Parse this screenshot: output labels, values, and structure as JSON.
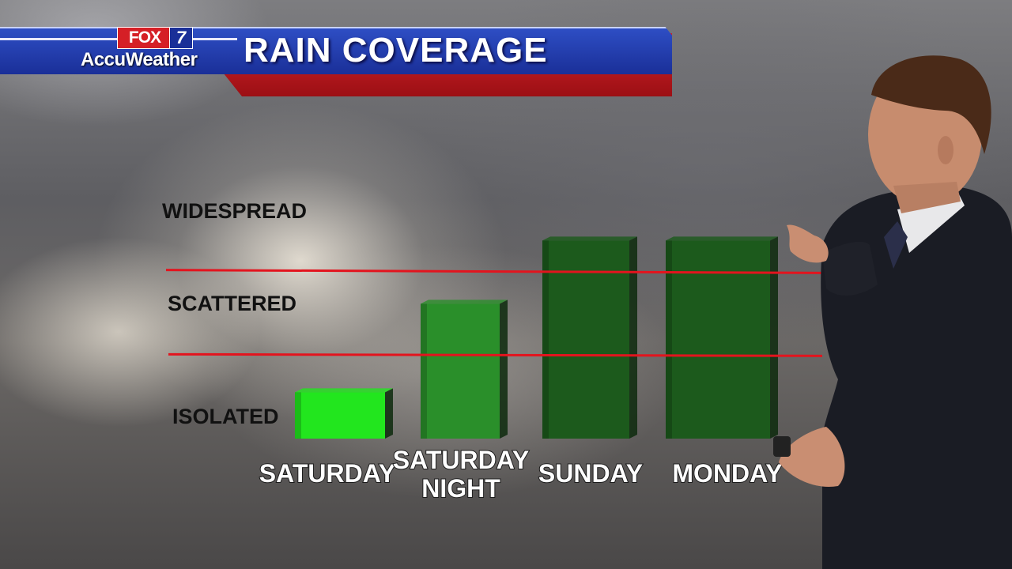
{
  "header": {
    "logo_fox": "FOX",
    "logo_seven": "7",
    "logo_accuweather": "AccuWeather",
    "title": "RAIN COVERAGE"
  },
  "colors": {
    "banner_blue": "#1a2f98",
    "banner_red": "#c81e25",
    "threshold_line": "#e3141e",
    "bar_bright_green": "#22e61e",
    "bar_mid_green": "#2a8f2a",
    "bar_dark_green": "#1c5a1c"
  },
  "chart_data": {
    "type": "bar",
    "title": "RAIN COVERAGE",
    "xlabel": "",
    "ylabel": "",
    "y_axis": "ordinal coverage levels",
    "levels": [
      "ISOLATED",
      "SCATTERED",
      "WIDESPREAD"
    ],
    "categories": [
      "SATURDAY",
      "SATURDAY NIGHT",
      "SUNDAY",
      "MONDAY"
    ],
    "values": [
      0.55,
      1.6,
      2.35,
      2.35
    ],
    "ylim": [
      0,
      3
    ],
    "threshold_lines": [
      1,
      2
    ],
    "bar_colors": [
      "#22e61e",
      "#2a8f2a",
      "#1c5a1c",
      "#1c5a1c"
    ],
    "grid": false,
    "legend": "none"
  },
  "icons": {
    "presenter": "weather-presenter-figure",
    "clicker": "remote-clicker-icon"
  }
}
